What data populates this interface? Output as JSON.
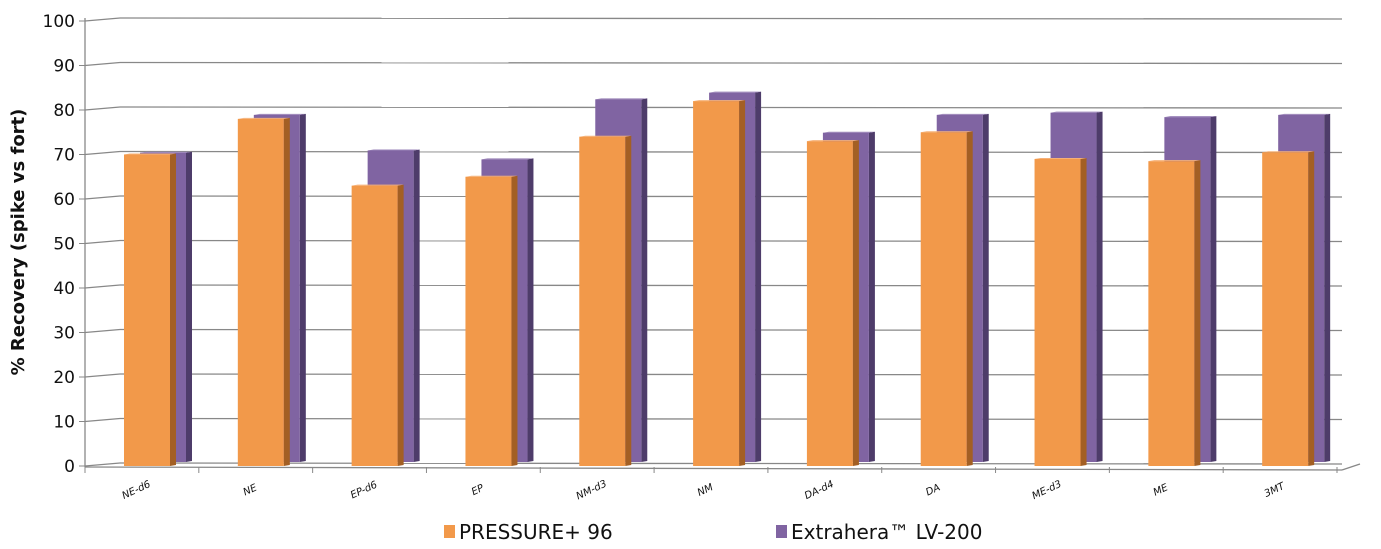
{
  "chart_data": {
    "type": "bar",
    "style": "3d-clustered-column",
    "title": "",
    "xlabel": "",
    "ylabel": "% Recovery (spike vs fort)",
    "ylim": [
      0,
      100
    ],
    "yticks": [
      "0",
      "10",
      "20",
      "30",
      "40",
      "50",
      "60",
      "70",
      "80",
      "90",
      "100"
    ],
    "grid": true,
    "legend_position": "bottom",
    "categories": [
      "NE-d6",
      "NE",
      "EP-d6",
      "EP",
      "NM-d3",
      "NM",
      "DA-d4",
      "DA",
      "ME-d3",
      "ME",
      "3MT"
    ],
    "series": [
      {
        "name": "PRESSURE+ 96",
        "color": "#f2994a",
        "values": [
          70,
          78,
          63,
          65,
          74,
          82,
          73,
          75,
          69,
          68.5,
          70.5
        ]
      },
      {
        "name": "Extrahera™ LV-200",
        "color": "#8064a2",
        "values": [
          69.5,
          78,
          70,
          68,
          81.5,
          83,
          74,
          78,
          78.5,
          77.5,
          78
        ]
      }
    ]
  }
}
